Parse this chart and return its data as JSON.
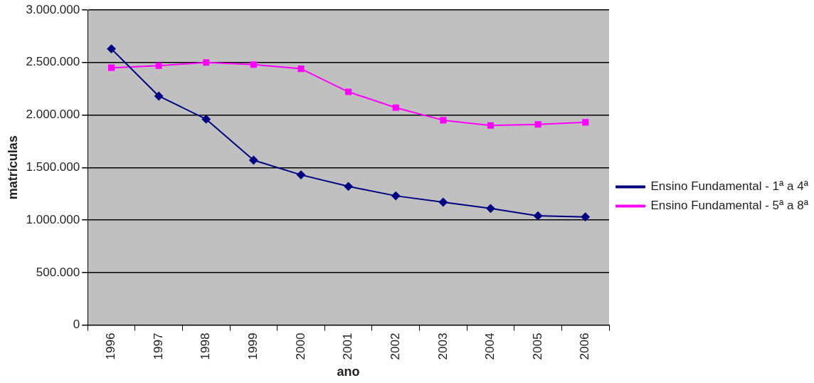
{
  "chart_data": {
    "type": "line",
    "xlabel": "ano",
    "ylabel": "matrículas",
    "categories": [
      "1996",
      "1997",
      "1998",
      "1999",
      "2000",
      "2001",
      "2002",
      "2003",
      "2004",
      "2005",
      "2006"
    ],
    "series": [
      {
        "name": "Ensino Fundamental - 1ª a 4ª",
        "color": "#000080",
        "marker": "diamond",
        "values": [
          2630000,
          2180000,
          1960000,
          1570000,
          1430000,
          1320000,
          1230000,
          1170000,
          1110000,
          1040000,
          1030000
        ]
      },
      {
        "name": "Ensino Fundamental - 5ª a 8ª",
        "color": "#ff00ff",
        "marker": "square",
        "values": [
          2450000,
          2470000,
          2500000,
          2480000,
          2440000,
          2220000,
          2070000,
          1950000,
          1900000,
          1910000,
          1930000
        ]
      }
    ],
    "ylim": [
      0,
      3000000
    ],
    "yticks": [
      {
        "value": 0,
        "label": "0"
      },
      {
        "value": 500000,
        "label": "500.000"
      },
      {
        "value": 1000000,
        "label": "1.000.000"
      },
      {
        "value": 1500000,
        "label": "1.500.000"
      },
      {
        "value": 2000000,
        "label": "2.000.000"
      },
      {
        "value": 2500000,
        "label": "2.500.000"
      },
      {
        "value": 3000000,
        "label": "3.000.000"
      }
    ],
    "grid": "y",
    "legend": "right"
  }
}
